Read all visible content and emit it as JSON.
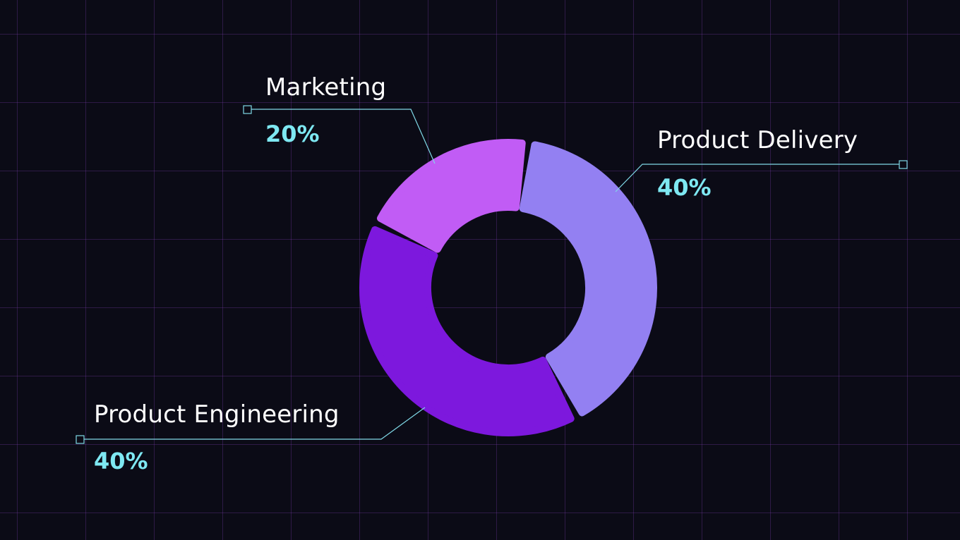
{
  "chart_data": {
    "type": "pie",
    "variant": "donut",
    "title": "",
    "grid": true,
    "colors": {
      "background": "#0b0b16",
      "grid": "#3a1f5c",
      "leader": "#7fd8e6",
      "percent_text": "#7ee8f2",
      "label_text": "#ffffff"
    },
    "slices": [
      {
        "label": "Product Delivery",
        "value": 40,
        "display": "40%",
        "color": "#9380f2"
      },
      {
        "label": "Product Engineering",
        "value": 40,
        "display": "40%",
        "color": "#7d18dd"
      },
      {
        "label": "Marketing",
        "value": 20,
        "display": "20%",
        "color": "#c15cf5"
      }
    ]
  }
}
